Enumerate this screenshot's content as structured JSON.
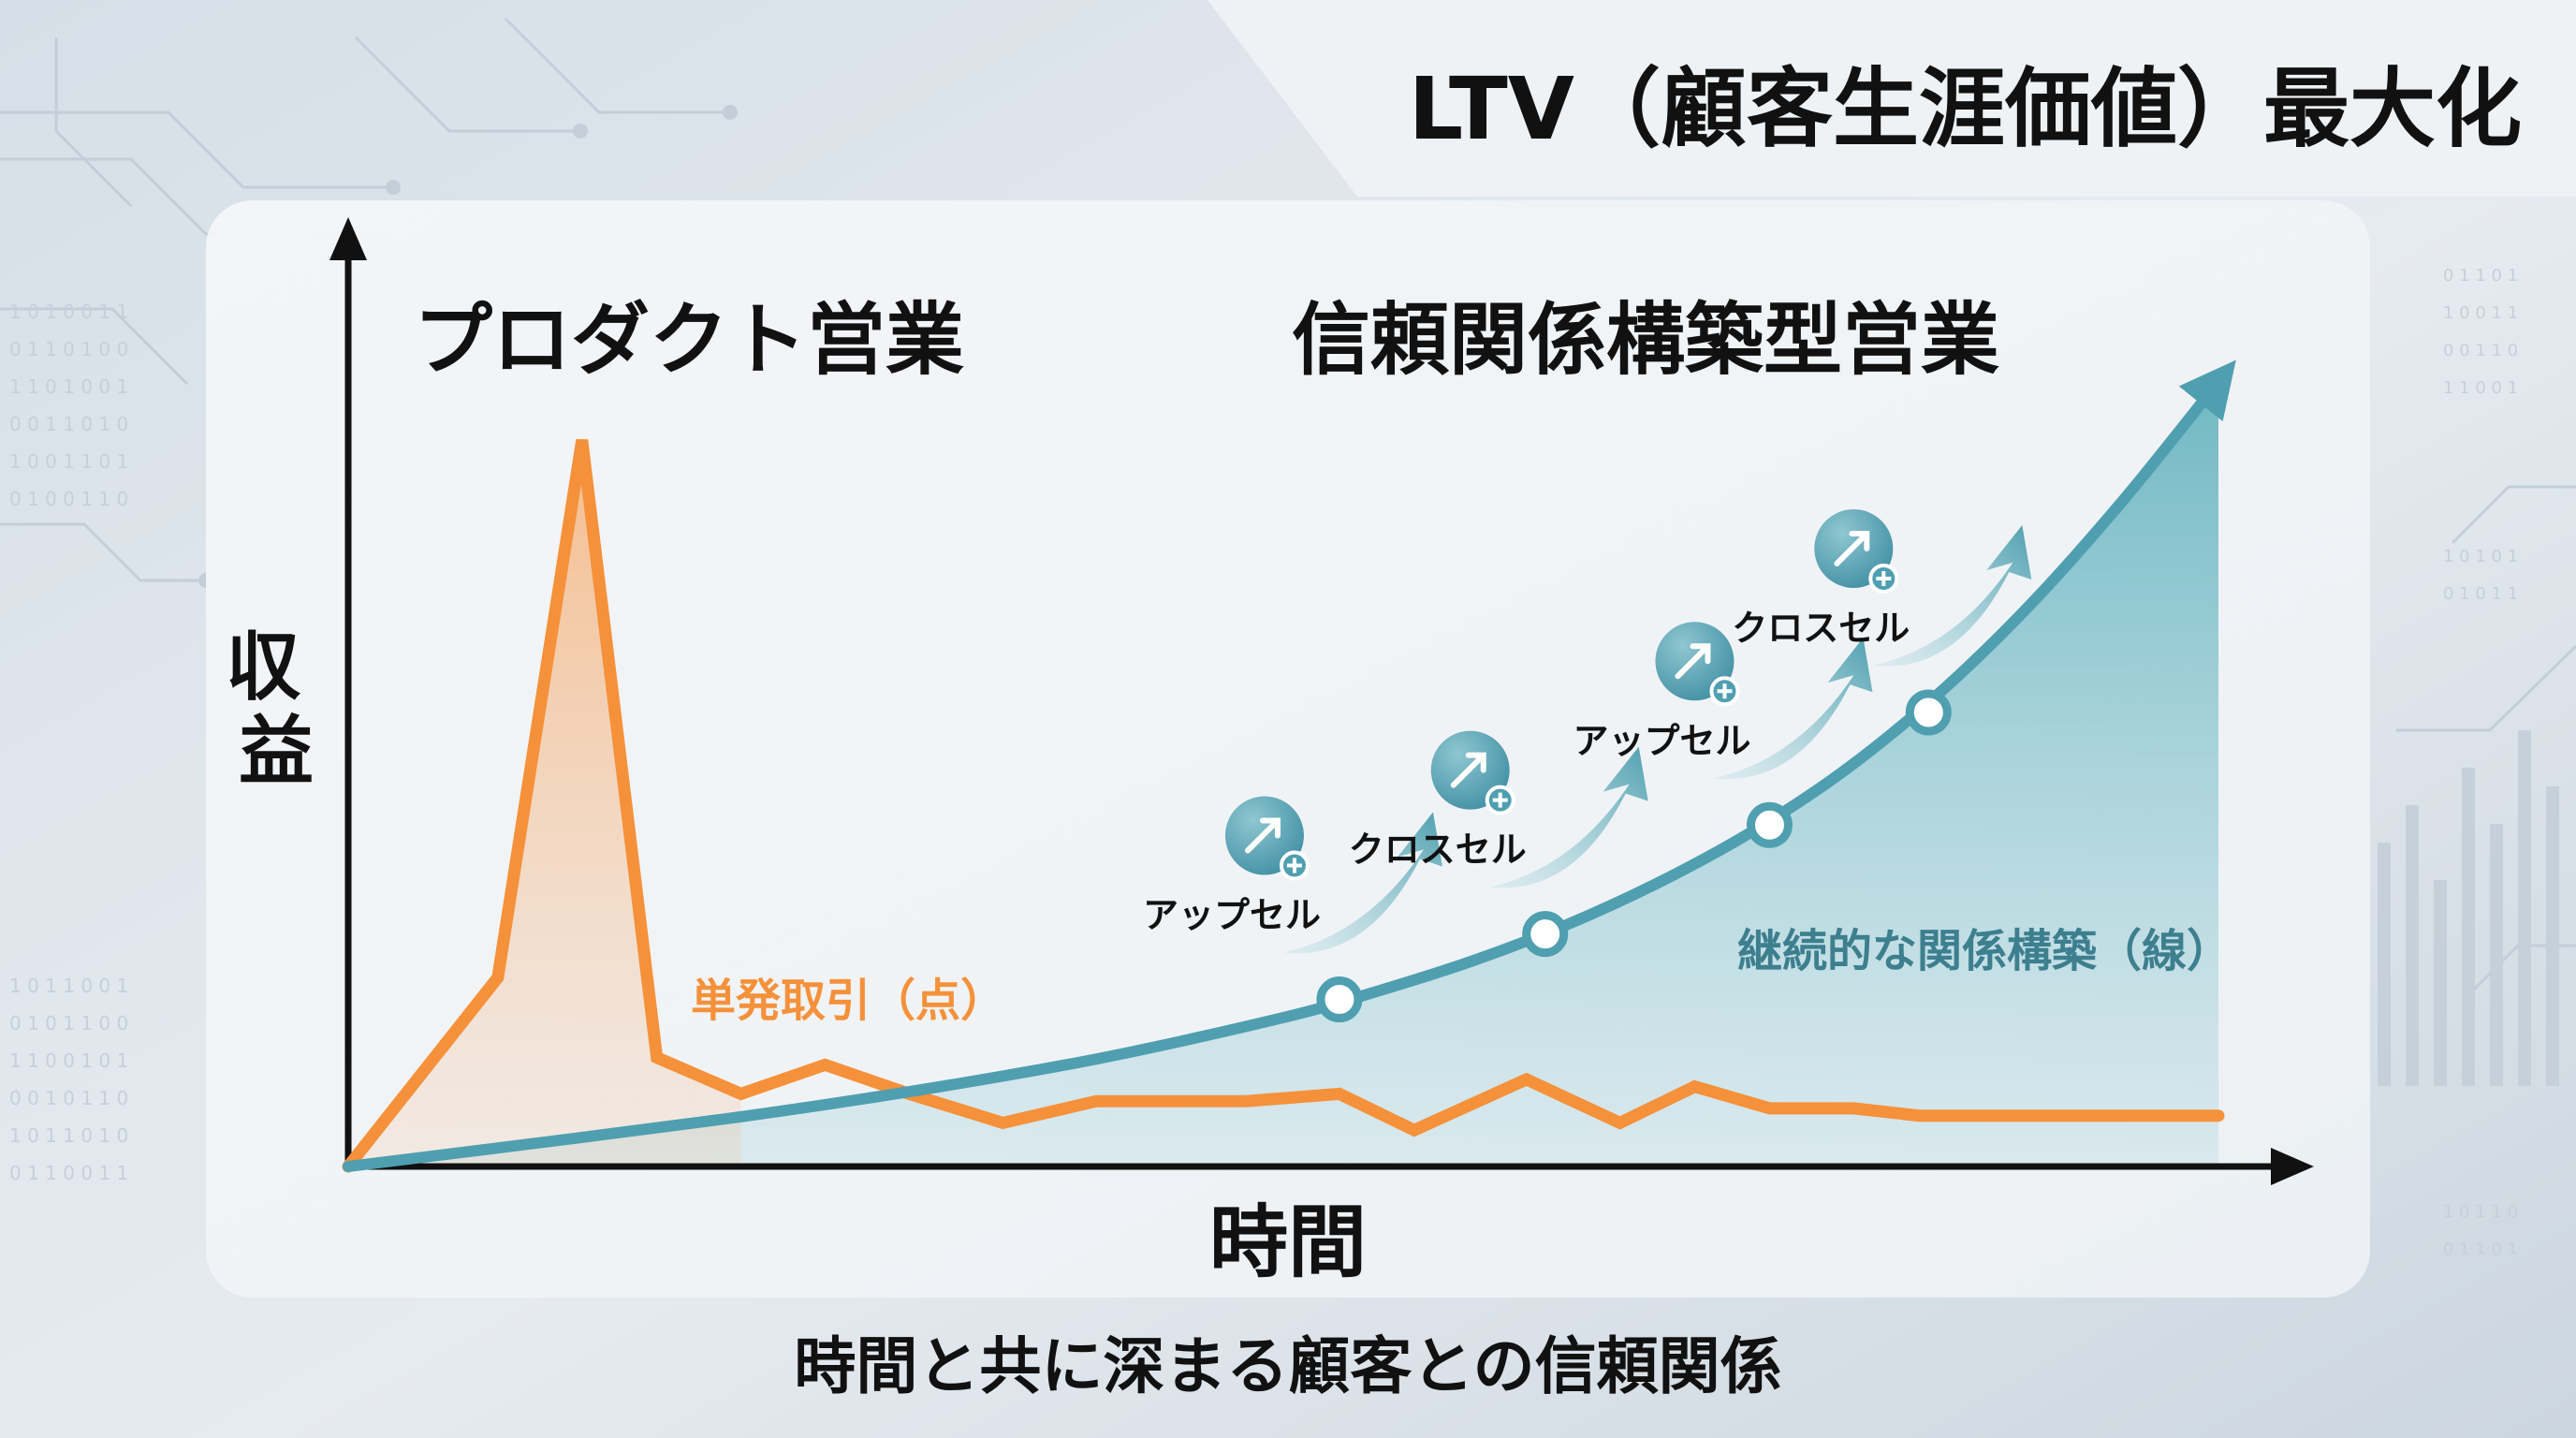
{
  "header": {
    "title": "LTV（顧客生涯価値）最大化"
  },
  "footer": {
    "caption": "時間と共に深まる顧客との信頼関係"
  },
  "colors": {
    "orange": "#f5913a",
    "teal": "#4f9fb0",
    "teal_text": "#3d7f8e",
    "dark": "#111111"
  },
  "chart_data": {
    "type": "line",
    "title": "LTV（顧客生涯価値）最大化",
    "xlabel": "時間",
    "ylabel": "収益",
    "xlim": [
      0,
      100
    ],
    "ylim": [
      0,
      100
    ],
    "grid": false,
    "section_labels": {
      "left": "プロダクト営業",
      "right": "信頼関係構築型営業"
    },
    "series": [
      {
        "name": "単発取引（点）",
        "color": "#f5913a",
        "style": "spike",
        "x": [
          0,
          8,
          12.5,
          16.5,
          21,
          25.5,
          30,
          35,
          40,
          48,
          53,
          57,
          63,
          68,
          72,
          76,
          80.5,
          84,
          88,
          100
        ],
        "values": [
          0,
          26,
          100,
          15,
          10,
          14,
          10,
          6,
          9,
          9,
          10,
          5,
          12,
          6,
          11,
          8,
          8,
          7,
          7,
          7
        ]
      },
      {
        "name": "継続的な関係構築（線）",
        "color": "#4f9fb0",
        "style": "growth",
        "x": [
          0,
          10,
          20,
          30,
          40,
          50,
          55,
          60,
          65,
          70,
          75,
          80,
          85,
          90,
          95,
          100
        ],
        "values": [
          0,
          3.2,
          6.5,
          10.3,
          14.8,
          20.5,
          24.1,
          28.2,
          33.1,
          39,
          46,
          54.5,
          65,
          77.5,
          92,
          108
        ]
      }
    ],
    "milestones": [
      {
        "x": 53,
        "y": 23,
        "label": "アップセル",
        "label_side": "left"
      },
      {
        "x": 64,
        "y": 32,
        "label": "クロスセル",
        "label_side": "left"
      },
      {
        "x": 76,
        "y": 47,
        "label": "アップセル",
        "label_side": "left"
      },
      {
        "x": 84.5,
        "y": 62.5,
        "label": "クロスセル",
        "label_side": "left"
      }
    ]
  }
}
